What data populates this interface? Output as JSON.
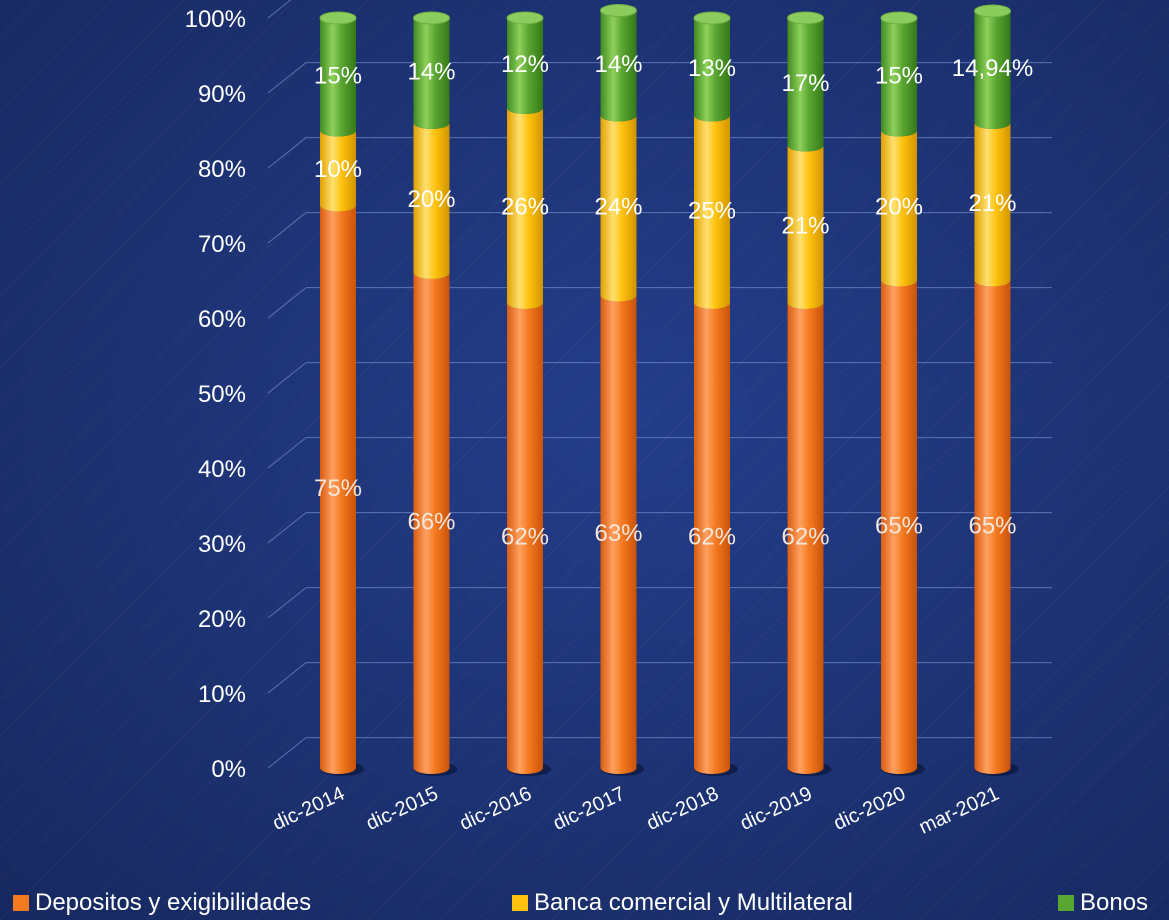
{
  "chart_data": {
    "type": "bar",
    "stacked": true,
    "categories": [
      "dic-2014",
      "dic-2015",
      "dic-2016",
      "dic-2017",
      "dic-2018",
      "dic-2019",
      "dic-2020",
      "mar-2021"
    ],
    "series": [
      {
        "name": "Depositos y exigibilidades",
        "color": "#f47a20",
        "values": [
          75,
          66,
          62,
          63,
          62,
          62,
          65,
          65
        ],
        "labels": [
          "75%",
          "66%",
          "62%",
          "63%",
          "62%",
          "62%",
          "65%",
          "65%"
        ]
      },
      {
        "name": "Banca comercial y Multilateral",
        "color": "#ffc20e",
        "values": [
          10,
          20,
          26,
          24,
          25,
          21,
          20,
          21
        ],
        "labels": [
          "10%",
          "20%",
          "26%",
          "24%",
          "25%",
          "21%",
          "20%",
          "21%"
        ]
      },
      {
        "name": "Bonos",
        "color": "#5aa632",
        "values": [
          15,
          14,
          12,
          14,
          13,
          17,
          15,
          14.94
        ],
        "labels": [
          "15%",
          "14%",
          "12%",
          "14%",
          "13%",
          "17%",
          "15%",
          "14,94%"
        ]
      }
    ],
    "yticks": [
      "0%",
      "10%",
      "20%",
      "30%",
      "40%",
      "50%",
      "60%",
      "70%",
      "80%",
      "90%",
      "100%"
    ],
    "ylim": [
      0,
      100
    ],
    "grid": true,
    "legend_position": "bottom"
  }
}
